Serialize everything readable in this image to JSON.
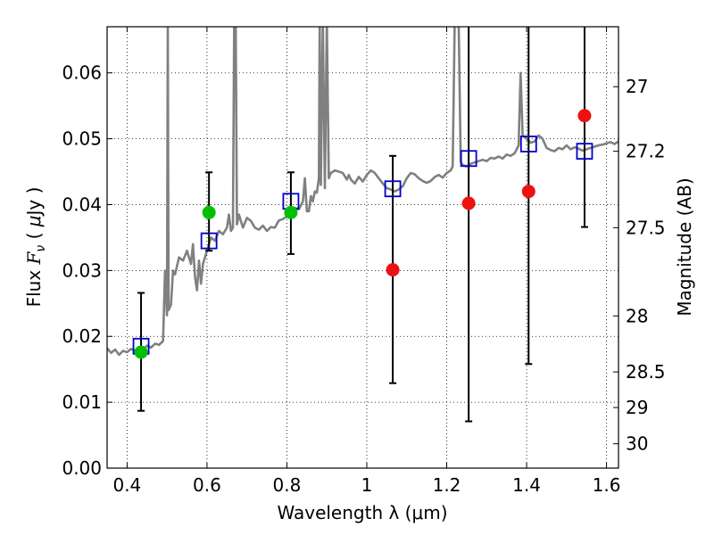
{
  "chart_data": {
    "type": "line",
    "title": "",
    "xlabel": "Wavelength  λ (μm)",
    "ylabel_parts": [
      "Flux ",
      "F",
      "ν",
      " ( ",
      "μ",
      "Jy )"
    ],
    "ylabel_right": "Magnitude (AB)",
    "xlim": [
      0.35,
      1.63
    ],
    "ylim": [
      0.0,
      0.067
    ],
    "grid": true,
    "x_ticks": [
      0.4,
      0.6,
      0.8,
      1.0,
      1.2,
      1.4,
      1.6
    ],
    "x_tick_labels": [
      "0.4",
      "0.6",
      "0.8",
      "1",
      "1.2",
      "1.4",
      "1.6"
    ],
    "y_ticks": [
      0.0,
      0.01,
      0.02,
      0.03,
      0.04,
      0.05,
      0.06
    ],
    "y_tick_labels": [
      "0.00",
      "0.01",
      "0.02",
      "0.03",
      "0.04",
      "0.05",
      "0.06"
    ],
    "right_ticks": [
      {
        "label": "27",
        "flux": 0.0579
      },
      {
        "label": "27.2",
        "flux": 0.0481
      },
      {
        "label": "27.5",
        "flux": 0.0365
      },
      {
        "label": "28",
        "flux": 0.0231
      },
      {
        "label": "28.5",
        "flux": 0.0146
      },
      {
        "label": "29",
        "flux": 0.0092
      },
      {
        "label": "30",
        "flux": 0.0037
      }
    ],
    "sed_color": "#808080",
    "sed_spectrum": [
      [
        0.35,
        0.0182
      ],
      [
        0.36,
        0.0175
      ],
      [
        0.37,
        0.018
      ],
      [
        0.38,
        0.0172
      ],
      [
        0.39,
        0.0178
      ],
      [
        0.4,
        0.0176
      ],
      [
        0.41,
        0.0181
      ],
      [
        0.42,
        0.0178
      ],
      [
        0.43,
        0.0183
      ],
      [
        0.44,
        0.018
      ],
      [
        0.45,
        0.0186
      ],
      [
        0.46,
        0.0183
      ],
      [
        0.47,
        0.0189
      ],
      [
        0.48,
        0.0187
      ],
      [
        0.49,
        0.0193
      ],
      [
        0.495,
        0.03
      ],
      [
        0.5,
        0.0232
      ],
      [
        0.502,
        0.068
      ],
      [
        0.504,
        0.024
      ],
      [
        0.51,
        0.0248
      ],
      [
        0.515,
        0.03
      ],
      [
        0.52,
        0.0294
      ],
      [
        0.53,
        0.032
      ],
      [
        0.54,
        0.0315
      ],
      [
        0.55,
        0.033
      ],
      [
        0.56,
        0.031
      ],
      [
        0.565,
        0.034
      ],
      [
        0.57,
        0.029
      ],
      [
        0.575,
        0.027
      ],
      [
        0.58,
        0.0315
      ],
      [
        0.585,
        0.028
      ],
      [
        0.59,
        0.031
      ],
      [
        0.6,
        0.033
      ],
      [
        0.61,
        0.035
      ],
      [
        0.62,
        0.0345
      ],
      [
        0.63,
        0.036
      ],
      [
        0.64,
        0.0355
      ],
      [
        0.65,
        0.0365
      ],
      [
        0.655,
        0.0385
      ],
      [
        0.66,
        0.036
      ],
      [
        0.665,
        0.0365
      ],
      [
        0.668,
        0.068
      ],
      [
        0.672,
        0.068
      ],
      [
        0.675,
        0.037
      ],
      [
        0.68,
        0.0385
      ],
      [
        0.69,
        0.0365
      ],
      [
        0.7,
        0.038
      ],
      [
        0.71,
        0.0375
      ],
      [
        0.72,
        0.0365
      ],
      [
        0.73,
        0.0362
      ],
      [
        0.74,
        0.0368
      ],
      [
        0.75,
        0.036
      ],
      [
        0.76,
        0.0366
      ],
      [
        0.77,
        0.0365
      ],
      [
        0.78,
        0.0376
      ],
      [
        0.79,
        0.0378
      ],
      [
        0.8,
        0.0382
      ],
      [
        0.81,
        0.039
      ],
      [
        0.82,
        0.0395
      ],
      [
        0.83,
        0.0393
      ],
      [
        0.84,
        0.0405
      ],
      [
        0.845,
        0.044
      ],
      [
        0.85,
        0.039
      ],
      [
        0.855,
        0.039
      ],
      [
        0.86,
        0.0413
      ],
      [
        0.865,
        0.0405
      ],
      [
        0.87,
        0.042
      ],
      [
        0.875,
        0.0418
      ],
      [
        0.88,
        0.044
      ],
      [
        0.882,
        0.068
      ],
      [
        0.885,
        0.043
      ],
      [
        0.89,
        0.068
      ],
      [
        0.895,
        0.0425
      ],
      [
        0.9,
        0.068
      ],
      [
        0.905,
        0.044
      ],
      [
        0.91,
        0.0448
      ],
      [
        0.92,
        0.0452
      ],
      [
        0.93,
        0.045
      ],
      [
        0.94,
        0.0448
      ],
      [
        0.95,
        0.0438
      ],
      [
        0.955,
        0.0445
      ],
      [
        0.96,
        0.0438
      ],
      [
        0.97,
        0.0432
      ],
      [
        0.98,
        0.0442
      ],
      [
        0.99,
        0.0435
      ],
      [
        1.0,
        0.0445
      ],
      [
        1.01,
        0.0452
      ],
      [
        1.02,
        0.0448
      ],
      [
        1.03,
        0.044
      ],
      [
        1.04,
        0.0432
      ],
      [
        1.05,
        0.0425
      ],
      [
        1.06,
        0.0423
      ],
      [
        1.07,
        0.042
      ],
      [
        1.08,
        0.0423
      ],
      [
        1.09,
        0.0428
      ],
      [
        1.1,
        0.044
      ],
      [
        1.11,
        0.0448
      ],
      [
        1.12,
        0.0446
      ],
      [
        1.13,
        0.044
      ],
      [
        1.14,
        0.0436
      ],
      [
        1.15,
        0.0433
      ],
      [
        1.16,
        0.0436
      ],
      [
        1.17,
        0.0442
      ],
      [
        1.18,
        0.0445
      ],
      [
        1.19,
        0.0441
      ],
      [
        1.2,
        0.0448
      ],
      [
        1.21,
        0.0452
      ],
      [
        1.215,
        0.0458
      ],
      [
        1.22,
        0.068
      ],
      [
        1.23,
        0.068
      ],
      [
        1.235,
        0.0465
      ],
      [
        1.24,
        0.046
      ],
      [
        1.25,
        0.0458
      ],
      [
        1.26,
        0.0462
      ],
      [
        1.27,
        0.0464
      ],
      [
        1.28,
        0.0466
      ],
      [
        1.29,
        0.0468
      ],
      [
        1.3,
        0.0466
      ],
      [
        1.31,
        0.0471
      ],
      [
        1.32,
        0.047
      ],
      [
        1.33,
        0.0473
      ],
      [
        1.34,
        0.047
      ],
      [
        1.35,
        0.0476
      ],
      [
        1.36,
        0.0474
      ],
      [
        1.37,
        0.0478
      ],
      [
        1.38,
        0.049
      ],
      [
        1.385,
        0.06
      ],
      [
        1.39,
        0.0505
      ],
      [
        1.4,
        0.05
      ],
      [
        1.41,
        0.0494
      ],
      [
        1.42,
        0.0496
      ],
      [
        1.43,
        0.0505
      ],
      [
        1.44,
        0.05
      ],
      [
        1.45,
        0.0486
      ],
      [
        1.46,
        0.0483
      ],
      [
        1.47,
        0.0481
      ],
      [
        1.48,
        0.0486
      ],
      [
        1.49,
        0.0484
      ],
      [
        1.5,
        0.049
      ],
      [
        1.51,
        0.0484
      ],
      [
        1.52,
        0.0487
      ],
      [
        1.53,
        0.0485
      ],
      [
        1.54,
        0.0482
      ],
      [
        1.55,
        0.0484
      ],
      [
        1.56,
        0.0486
      ],
      [
        1.57,
        0.0488
      ],
      [
        1.58,
        0.049
      ],
      [
        1.59,
        0.0491
      ],
      [
        1.6,
        0.0493
      ],
      [
        1.61,
        0.0495
      ],
      [
        1.62,
        0.0492
      ],
      [
        1.63,
        0.0496
      ]
    ],
    "model_squares": {
      "color": "#0000cc",
      "points": [
        [
          0.435,
          0.0185
        ],
        [
          0.605,
          0.0345
        ],
        [
          0.81,
          0.0405
        ],
        [
          1.065,
          0.0424
        ],
        [
          1.255,
          0.047
        ],
        [
          1.405,
          0.0492
        ],
        [
          1.545,
          0.0481
        ]
      ]
    },
    "green_points": {
      "color": "#00c000",
      "points": [
        [
          0.435,
          0.0176
        ],
        [
          0.605,
          0.0388
        ],
        [
          0.81,
          0.0388
        ]
      ]
    },
    "red_points": {
      "color": "#ee1111",
      "points": [
        [
          1.065,
          0.0301
        ],
        [
          1.255,
          0.0402
        ],
        [
          1.405,
          0.042
        ],
        [
          1.545,
          0.0535
        ]
      ]
    },
    "error_bars": [
      {
        "x": 0.435,
        "y_low": 0.0087,
        "y_high": 0.0266
      },
      {
        "x": 0.605,
        "y_low": 0.033,
        "y_high": 0.0449
      },
      {
        "x": 0.81,
        "y_low": 0.0325,
        "y_high": 0.0449
      },
      {
        "x": 1.065,
        "y_low": 0.0129,
        "y_high": 0.0474
      },
      {
        "x": 1.255,
        "y_low": 0.0071,
        "y_high": 0.068
      },
      {
        "x": 1.405,
        "y_low": 0.0158,
        "y_high": 0.068
      },
      {
        "x": 1.545,
        "y_low": 0.0366,
        "y_high": 0.068
      }
    ]
  }
}
